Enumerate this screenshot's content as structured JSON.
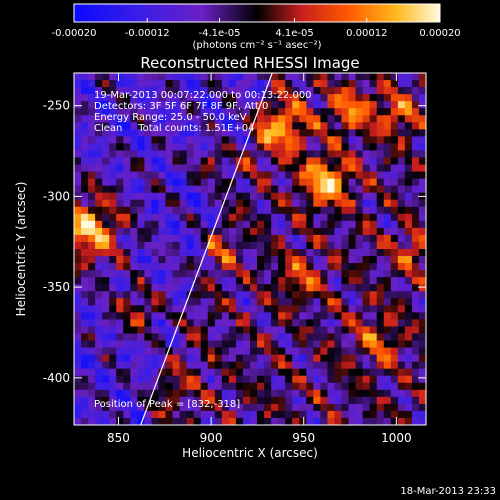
{
  "chart_data": {
    "type": "heatmap",
    "title": "Reconstructed RHESSI Image",
    "xlabel": "Heliocentric X (arcsec)",
    "ylabel": "Heliocentric Y (arcsec)",
    "xlim": [
      826,
      1016
    ],
    "ylim": [
      -426,
      -232
    ],
    "x_ticks": [
      850,
      900,
      950,
      1000
    ],
    "y_ticks": [
      -250,
      -300,
      -350,
      -400
    ],
    "colorbar": {
      "range": [
        -0.0002,
        0.0002
      ],
      "tick_values": [
        -0.0002,
        -0.00012,
        -4.1e-05,
        4.1e-05,
        0.00012,
        0.0002
      ],
      "tick_labels": [
        "-0.00020",
        "-0.00012",
        "-4.1e-05",
        "4.1e-05",
        "0.00012",
        "0.00020"
      ],
      "unit_label": "(photons cm⁻² s⁻¹ asec⁻²)",
      "colors": [
        "#0a0aff",
        "#4b1fd6",
        "#7a22c0",
        "#000000",
        "#c81e1e",
        "#ff6a00",
        "#ffc21a",
        "#fffbe0"
      ]
    },
    "annotations": [
      "19-Mar-2013 00:07:22.000 to 00:13:22.000",
      "Detectors: 3F 5F 6F 7F 8F 9F, Att 0",
      "Energy Range: 25.0 - 50.0 keV",
      "Clean     Total counts: 1.51E+04"
    ],
    "peak_label": "Position of Peak = [832,-318]",
    "peak": [
      832,
      -318
    ],
    "limb_line": [
      [
        862,
        -426
      ],
      [
        933,
        -232
      ]
    ]
  },
  "footer": {
    "timestamp": "18-Mar-2013 23:33"
  }
}
